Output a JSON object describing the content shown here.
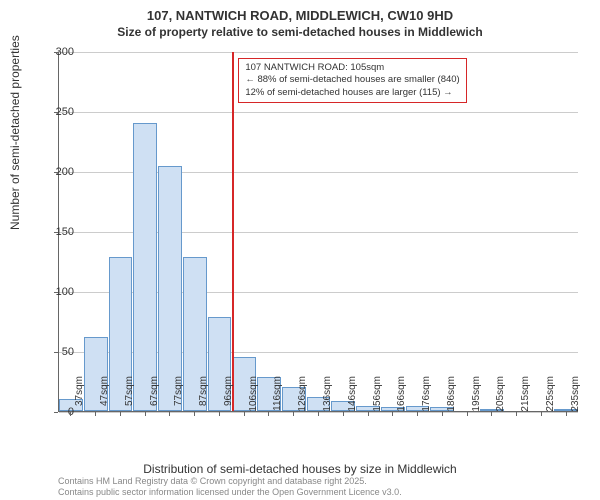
{
  "title_line1": "107, NANTWICH ROAD, MIDDLEWICH, CW10 9HD",
  "title_line2": "Size of property relative to semi-detached houses in Middlewich",
  "chart": {
    "type": "histogram",
    "ylabel": "Number of semi-detached properties",
    "xlabel": "Distribution of semi-detached houses by size in Middlewich",
    "ylim": [
      0,
      300
    ],
    "ytick_step": 50,
    "yticks": [
      0,
      50,
      100,
      150,
      200,
      250,
      300
    ],
    "bar_fill": "#cfe0f3",
    "bar_stroke": "#6699cc",
    "grid_color": "#cccccc",
    "axis_color": "#666666",
    "ref_line_color": "#d62728",
    "ref_line_x_index": 7,
    "categories": [
      "37sqm",
      "47sqm",
      "57sqm",
      "67sqm",
      "77sqm",
      "87sqm",
      "96sqm",
      "106sqm",
      "116sqm",
      "126sqm",
      "136sqm",
      "146sqm",
      "156sqm",
      "166sqm",
      "176sqm",
      "186sqm",
      "195sqm",
      "205sqm",
      "215sqm",
      "225sqm",
      "235sqm"
    ],
    "values": [
      10,
      62,
      128,
      240,
      204,
      128,
      78,
      45,
      28,
      20,
      12,
      8,
      4,
      3,
      4,
      3,
      0,
      2,
      0,
      0,
      2
    ],
    "annotation": {
      "line1": "107 NANTWICH ROAD: 105sqm",
      "line2": "← 88% of semi-detached houses are smaller (840)",
      "line3": "12% of semi-detached houses are larger (115) →"
    }
  },
  "footer_line1": "Contains HM Land Registry data © Crown copyright and database right 2025.",
  "footer_line2": "Contains public sector information licensed under the Open Government Licence v3.0."
}
